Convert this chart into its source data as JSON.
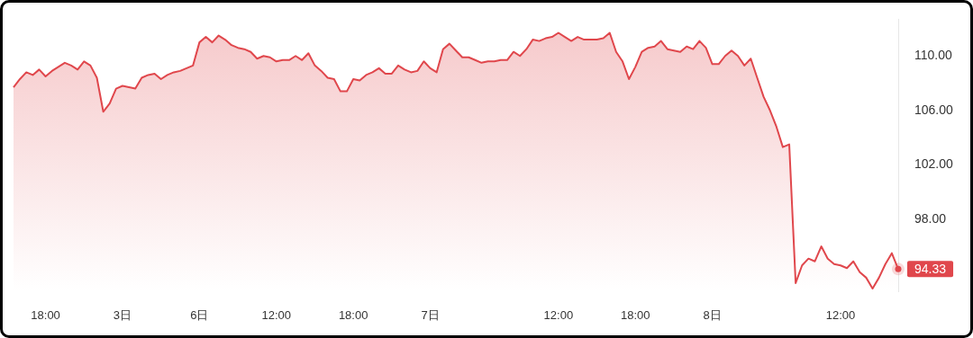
{
  "chart_data": {
    "type": "area",
    "categories": [
      null,
      null,
      null,
      null,
      null,
      "18:00",
      null,
      null,
      null,
      null,
      null,
      null,
      null,
      null,
      null,
      null,
      null,
      "3日",
      null,
      null,
      null,
      null,
      null,
      null,
      null,
      null,
      null,
      null,
      null,
      "6日",
      null,
      null,
      null,
      null,
      null,
      null,
      null,
      null,
      null,
      null,
      null,
      "12:00",
      null,
      null,
      null,
      null,
      null,
      null,
      null,
      null,
      null,
      null,
      null,
      "18:00",
      null,
      null,
      null,
      null,
      null,
      null,
      null,
      null,
      null,
      null,
      null,
      "7日",
      null,
      null,
      null,
      null,
      null,
      null,
      null,
      null,
      null,
      null,
      null,
      null,
      null,
      null,
      null,
      null,
      null,
      null,
      null,
      "12:00",
      null,
      null,
      null,
      null,
      null,
      null,
      null,
      null,
      null,
      null,
      null,
      "18:00",
      null,
      null,
      null,
      null,
      null,
      null,
      null,
      null,
      null,
      null,
      null,
      "8日",
      null,
      null,
      null,
      null,
      null,
      null,
      null,
      null,
      null,
      null,
      null,
      null,
      null,
      null,
      null,
      null,
      null,
      null,
      null,
      "12:00",
      null,
      null,
      null,
      null,
      null,
      null,
      null,
      null,
      null
    ],
    "series": [
      {
        "color": "#e0474c",
        "values": [
          107.7,
          108.3,
          108.8,
          108.6,
          109.0,
          108.5,
          108.9,
          109.2,
          109.5,
          109.3,
          109.0,
          109.6,
          109.3,
          108.4,
          105.9,
          106.5,
          107.6,
          107.8,
          107.7,
          107.6,
          108.4,
          108.6,
          108.7,
          108.3,
          108.6,
          108.8,
          108.9,
          109.1,
          109.3,
          111.0,
          111.4,
          111.0,
          111.5,
          111.2,
          110.8,
          110.6,
          110.5,
          110.3,
          109.8,
          110.0,
          109.9,
          109.6,
          109.7,
          109.7,
          110.0,
          109.7,
          110.2,
          109.3,
          108.9,
          108.4,
          108.3,
          107.4,
          107.4,
          108.3,
          108.2,
          108.6,
          108.8,
          109.1,
          108.7,
          108.7,
          109.3,
          109.0,
          108.8,
          108.9,
          109.6,
          109.1,
          108.8,
          110.5,
          110.9,
          110.4,
          109.9,
          109.9,
          109.7,
          109.5,
          109.6,
          109.6,
          109.7,
          109.7,
          110.3,
          110.0,
          110.5,
          111.2,
          111.1,
          111.3,
          111.4,
          111.7,
          111.4,
          111.1,
          111.4,
          111.2,
          111.2,
          111.2,
          111.3,
          111.7,
          110.3,
          109.6,
          108.3,
          109.2,
          110.3,
          110.6,
          110.7,
          111.1,
          110.5,
          110.4,
          110.3,
          110.7,
          110.5,
          111.1,
          110.6,
          109.4,
          109.4,
          110.0,
          110.4,
          110.0,
          109.3,
          109.8,
          108.4,
          107.0,
          106.0,
          104.8,
          103.3,
          103.5,
          93.3,
          94.6,
          95.1,
          94.9,
          96.0,
          95.1,
          94.7,
          94.6,
          94.4,
          94.9,
          94.1,
          93.7,
          92.9,
          93.7,
          94.7,
          95.5,
          94.33
        ],
        "value_labels": [
          null,
          null,
          null,
          null,
          null,
          null,
          null,
          null,
          null,
          null,
          null,
          null,
          null,
          null,
          null,
          null,
          null,
          null,
          null,
          null,
          null,
          null,
          null,
          null,
          null,
          null,
          null,
          null,
          null,
          null,
          null,
          null,
          null,
          null,
          null,
          null,
          null,
          null,
          null,
          null,
          null,
          null,
          null,
          null,
          null,
          null,
          null,
          null,
          null,
          null,
          null,
          null,
          null,
          null,
          null,
          null,
          null,
          null,
          null,
          null,
          null,
          null,
          null,
          null,
          null,
          null,
          null,
          null,
          null,
          null,
          null,
          null,
          null,
          null,
          null,
          null,
          null,
          null,
          null,
          null,
          null,
          null,
          null,
          null,
          null,
          null,
          null,
          null,
          null,
          null,
          null,
          null,
          null,
          null,
          null,
          null,
          null,
          null,
          null,
          null,
          null,
          null,
          null,
          null,
          null,
          null,
          null,
          null,
          null,
          null,
          null,
          null,
          null,
          null,
          null,
          null,
          null,
          null,
          null,
          null,
          null,
          null,
          null,
          null,
          null,
          null,
          null,
          null,
          null,
          null,
          null,
          null,
          null,
          null,
          null,
          null,
          null,
          null,
          "94.33"
        ]
      }
    ],
    "ylim": [
      92.7,
      112.7
    ],
    "yticks": [
      {
        "value": 98,
        "label": "98.00"
      },
      {
        "value": 102,
        "label": "102.00"
      },
      {
        "value": 106,
        "label": "106.00"
      },
      {
        "value": 110,
        "label": "110.00"
      }
    ]
  }
}
